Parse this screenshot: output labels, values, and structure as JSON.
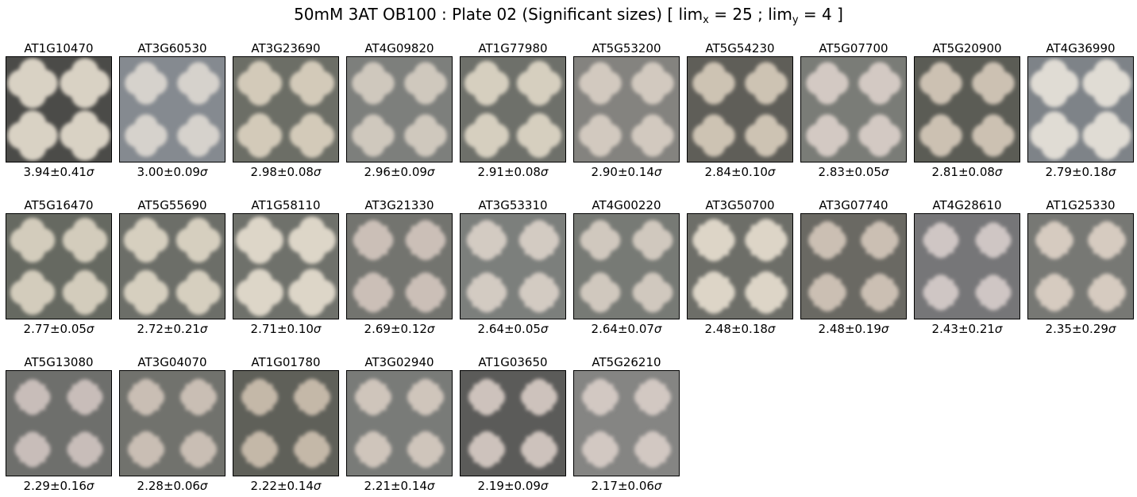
{
  "title": {
    "main": "50mM 3AT  OB100 : Plate 02 (Significant sizes) [ lim",
    "x_sub": "x",
    "mid": " = 25 ; lim",
    "y_sub": "y",
    "end": " = 4 ]"
  },
  "sigma_symbol": "σ",
  "panels": [
    {
      "gene": "AT1G10470",
      "score": "3.94±0.41",
      "bg": "#4b4b48",
      "colony": "#d9d2c4",
      "size": 1.12,
      "shape": "round"
    },
    {
      "gene": "AT3G60530",
      "score": "3.00±0.09",
      "bg": "#858a90",
      "colony": "#d6d2cc",
      "size": 0.95,
      "shape": "round"
    },
    {
      "gene": "AT3G23690",
      "score": "2.98±0.08",
      "bg": "#6c6e66",
      "colony": "#d3cab9",
      "size": 1.0,
      "shape": "round"
    },
    {
      "gene": "AT4G09820",
      "score": "2.96±0.09",
      "bg": "#7d7f7c",
      "colony": "#cfc8bd",
      "size": 0.95,
      "shape": "round"
    },
    {
      "gene": "AT1G77980",
      "score": "2.91±0.08",
      "bg": "#6e706a",
      "colony": "#d6cfbf",
      "size": 1.0,
      "shape": "round"
    },
    {
      "gene": "AT5G53200",
      "score": "2.90±0.14",
      "bg": "#84837f",
      "colony": "#d2c9bf",
      "size": 0.95,
      "shape": "round"
    },
    {
      "gene": "AT5G54230",
      "score": "2.84±0.10",
      "bg": "#5f5e58",
      "colony": "#cdc3b3",
      "size": 0.95,
      "shape": "round"
    },
    {
      "gene": "AT5G07700",
      "score": "2.83±0.05",
      "bg": "#7a7c77",
      "colony": "#d3c9c3",
      "size": 0.95,
      "shape": "round"
    },
    {
      "gene": "AT5G20900",
      "score": "2.81±0.08",
      "bg": "#5b5c55",
      "colony": "#ccc1b2",
      "size": 0.95,
      "shape": "round"
    },
    {
      "gene": "AT4G36990",
      "score": "2.79±0.18",
      "bg": "#7e8388",
      "colony": "#e0dcd4",
      "size": 1.08,
      "shape": "round"
    },
    {
      "gene": "AT5G16470",
      "score": "2.77±0.05",
      "bg": "#666961",
      "colony": "#d3ccbc",
      "size": 1.0,
      "shape": "round"
    },
    {
      "gene": "AT5G55690",
      "score": "2.72±0.21",
      "bg": "#6c6e68",
      "colony": "#d6cfbf",
      "size": 1.0,
      "shape": "round"
    },
    {
      "gene": "AT1G58110",
      "score": "2.71±0.10",
      "bg": "#6f716b",
      "colony": "#ddd6c8",
      "size": 1.06,
      "shape": "round"
    },
    {
      "gene": "AT3G21330",
      "score": "2.69±0.12",
      "bg": "#73746f",
      "colony": "#cbbfb7",
      "size": 0.9,
      "shape": "lobed"
    },
    {
      "gene": "AT3G53310",
      "score": "2.64±0.05",
      "bg": "#7c7f7c",
      "colony": "#d3cbc2",
      "size": 0.9,
      "shape": "lobed"
    },
    {
      "gene": "AT4G00220",
      "score": "2.64±0.07",
      "bg": "#777a75",
      "colony": "#d0c8be",
      "size": 0.9,
      "shape": "round"
    },
    {
      "gene": "AT3G50700",
      "score": "2.48±0.18",
      "bg": "#6d6e68",
      "colony": "#ddd5c7",
      "size": 0.95,
      "shape": "lobed"
    },
    {
      "gene": "AT3G07740",
      "score": "2.48±0.19",
      "bg": "#6a6963",
      "colony": "#cbbfb3",
      "size": 0.85,
      "shape": "lobed"
    },
    {
      "gene": "AT4G28610",
      "score": "2.43±0.21",
      "bg": "#767678",
      "colony": "#cfc6c4",
      "size": 0.8,
      "shape": "lobed"
    },
    {
      "gene": "AT1G25330",
      "score": "2.35±0.29",
      "bg": "#777874",
      "colony": "#d6cbc0",
      "size": 0.85,
      "shape": "lobed"
    },
    {
      "gene": "AT5G13080",
      "score": "2.29±0.16",
      "bg": "#6e6f6c",
      "colony": "#c8bdb9",
      "size": 0.8,
      "shape": "lobed"
    },
    {
      "gene": "AT3G04070",
      "score": "2.28±0.06",
      "bg": "#71726d",
      "colony": "#c9beb4",
      "size": 0.82,
      "shape": "lobed"
    },
    {
      "gene": "AT1G01780",
      "score": "2.22±0.14",
      "bg": "#5f6059",
      "colony": "#c4b8a8",
      "size": 0.82,
      "shape": "lobed"
    },
    {
      "gene": "AT3G02940",
      "score": "2.21±0.14",
      "bg": "#797b78",
      "colony": "#cfc5bb",
      "size": 0.82,
      "shape": "lobed"
    },
    {
      "gene": "AT1G03650",
      "score": "2.19±0.09",
      "bg": "#5b5b59",
      "colony": "#cdc2bc",
      "size": 0.82,
      "shape": "lobed"
    },
    {
      "gene": "AT5G26210",
      "score": "2.17±0.06",
      "bg": "#858583",
      "colony": "#d2c8c2",
      "size": 0.82,
      "shape": "lobed"
    }
  ]
}
